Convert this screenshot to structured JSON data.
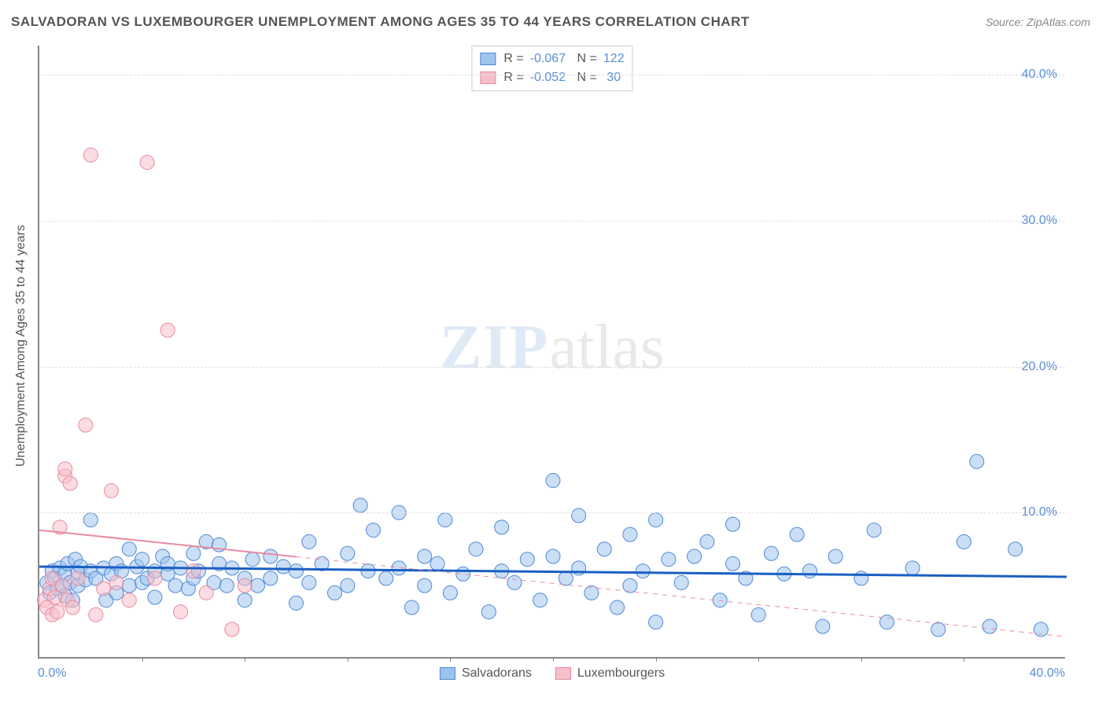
{
  "title": "SALVADORAN VS LUXEMBOURGER UNEMPLOYMENT AMONG AGES 35 TO 44 YEARS CORRELATION CHART",
  "source": "Source: ZipAtlas.com",
  "y_axis_label": "Unemployment Among Ages 35 to 44 years",
  "watermark_a": "ZIP",
  "watermark_b": "atlas",
  "chart": {
    "type": "scatter",
    "xlim": [
      0,
      40
    ],
    "ylim": [
      0,
      42
    ],
    "x_tick_labels": [
      "0.0%",
      "40.0%"
    ],
    "y_ticks": [
      10,
      20,
      30,
      40
    ],
    "y_tick_labels": [
      "10.0%",
      "20.0%",
      "30.0%",
      "40.0%"
    ],
    "x_minor_ticks": [
      4,
      8,
      12,
      16,
      20,
      24,
      28,
      32,
      36
    ],
    "background_color": "#ffffff",
    "grid_dash_color": "#e0e0e0",
    "axis_color": "#888888",
    "series": [
      {
        "name": "Salvadorans",
        "color_fill": "#9ec4ee",
        "color_stroke": "#4f88d6",
        "marker_radius": 9,
        "marker_opacity": 0.55,
        "R": "-0.067",
        "N": "122",
        "trend": {
          "y_at_x0": 6.3,
          "y_at_x40": 5.6,
          "color": "#1b5fc2",
          "width": 3,
          "dash": "none"
        },
        "points": [
          [
            0.3,
            5.2
          ],
          [
            0.4,
            4.5
          ],
          [
            0.5,
            6.0
          ],
          [
            0.6,
            5.5
          ],
          [
            0.7,
            4.8
          ],
          [
            0.8,
            6.2
          ],
          [
            0.9,
            5.0
          ],
          [
            1.0,
            5.8
          ],
          [
            1.0,
            4.3
          ],
          [
            1.1,
            6.5
          ],
          [
            1.2,
            5.2
          ],
          [
            1.3,
            4.0
          ],
          [
            1.4,
            6.8
          ],
          [
            1.5,
            5.0
          ],
          [
            1.5,
            5.9
          ],
          [
            1.6,
            6.3
          ],
          [
            1.8,
            5.4
          ],
          [
            2.0,
            6.0
          ],
          [
            2.0,
            9.5
          ],
          [
            2.2,
            5.5
          ],
          [
            2.5,
            6.2
          ],
          [
            2.6,
            4.0
          ],
          [
            2.8,
            5.8
          ],
          [
            3.0,
            6.5
          ],
          [
            3.0,
            4.5
          ],
          [
            3.2,
            6.0
          ],
          [
            3.5,
            5.0
          ],
          [
            3.5,
            7.5
          ],
          [
            3.8,
            6.3
          ],
          [
            4.0,
            5.2
          ],
          [
            4.0,
            6.8
          ],
          [
            4.2,
            5.5
          ],
          [
            4.5,
            6.0
          ],
          [
            4.5,
            4.2
          ],
          [
            4.8,
            7.0
          ],
          [
            5.0,
            5.8
          ],
          [
            5.0,
            6.5
          ],
          [
            5.3,
            5.0
          ],
          [
            5.5,
            6.2
          ],
          [
            5.8,
            4.8
          ],
          [
            6.0,
            7.2
          ],
          [
            6.0,
            5.5
          ],
          [
            6.2,
            6.0
          ],
          [
            6.5,
            8.0
          ],
          [
            6.8,
            5.2
          ],
          [
            7.0,
            6.5
          ],
          [
            7.0,
            7.8
          ],
          [
            7.3,
            5.0
          ],
          [
            7.5,
            6.2
          ],
          [
            8.0,
            5.5
          ],
          [
            8.0,
            4.0
          ],
          [
            8.3,
            6.8
          ],
          [
            8.5,
            5.0
          ],
          [
            9.0,
            7.0
          ],
          [
            9.0,
            5.5
          ],
          [
            9.5,
            6.3
          ],
          [
            10.0,
            3.8
          ],
          [
            10.0,
            6.0
          ],
          [
            10.5,
            5.2
          ],
          [
            10.5,
            8.0
          ],
          [
            11.0,
            6.5
          ],
          [
            11.5,
            4.5
          ],
          [
            12.0,
            7.2
          ],
          [
            12.0,
            5.0
          ],
          [
            12.5,
            10.5
          ],
          [
            12.8,
            6.0
          ],
          [
            13.0,
            8.8
          ],
          [
            13.5,
            5.5
          ],
          [
            14.0,
            10.0
          ],
          [
            14.0,
            6.2
          ],
          [
            14.5,
            3.5
          ],
          [
            15.0,
            7.0
          ],
          [
            15.0,
            5.0
          ],
          [
            15.5,
            6.5
          ],
          [
            15.8,
            9.5
          ],
          [
            16.0,
            4.5
          ],
          [
            16.5,
            5.8
          ],
          [
            17.0,
            7.5
          ],
          [
            17.5,
            3.2
          ],
          [
            18.0,
            6.0
          ],
          [
            18.0,
            9.0
          ],
          [
            18.5,
            5.2
          ],
          [
            19.0,
            6.8
          ],
          [
            19.5,
            4.0
          ],
          [
            20.0,
            7.0
          ],
          [
            20.0,
            12.2
          ],
          [
            20.5,
            5.5
          ],
          [
            21.0,
            6.2
          ],
          [
            21.0,
            9.8
          ],
          [
            21.5,
            4.5
          ],
          [
            22.0,
            7.5
          ],
          [
            22.5,
            3.5
          ],
          [
            23.0,
            8.5
          ],
          [
            23.0,
            5.0
          ],
          [
            23.5,
            6.0
          ],
          [
            24.0,
            9.5
          ],
          [
            24.0,
            2.5
          ],
          [
            24.5,
            6.8
          ],
          [
            25.0,
            5.2
          ],
          [
            25.5,
            7.0
          ],
          [
            26.0,
            8.0
          ],
          [
            26.5,
            4.0
          ],
          [
            27.0,
            6.5
          ],
          [
            27.0,
            9.2
          ],
          [
            27.5,
            5.5
          ],
          [
            28.0,
            3.0
          ],
          [
            28.5,
            7.2
          ],
          [
            29.0,
            5.8
          ],
          [
            29.5,
            8.5
          ],
          [
            30.0,
            6.0
          ],
          [
            30.5,
            2.2
          ],
          [
            31.0,
            7.0
          ],
          [
            32.0,
            5.5
          ],
          [
            32.5,
            8.8
          ],
          [
            33.0,
            2.5
          ],
          [
            34.0,
            6.2
          ],
          [
            35.0,
            2.0
          ],
          [
            36.0,
            8.0
          ],
          [
            36.5,
            13.5
          ],
          [
            37.0,
            2.2
          ],
          [
            38.0,
            7.5
          ],
          [
            39.0,
            2.0
          ]
        ]
      },
      {
        "name": "Luxembourgers",
        "color_fill": "#f5c0ca",
        "color_stroke": "#e88ba0",
        "marker_radius": 9,
        "marker_opacity": 0.55,
        "R": "-0.052",
        "N": "30",
        "trend": {
          "y_at_x0": 8.8,
          "y_at_x40": 1.5,
          "color": "#e88ba0",
          "width": 2,
          "dash": "solid-then-dash"
        },
        "points": [
          [
            0.2,
            4.0
          ],
          [
            0.3,
            3.5
          ],
          [
            0.4,
            4.8
          ],
          [
            0.5,
            3.0
          ],
          [
            0.5,
            5.5
          ],
          [
            0.6,
            4.2
          ],
          [
            0.7,
            3.2
          ],
          [
            0.8,
            9.0
          ],
          [
            0.9,
            5.0
          ],
          [
            1.0,
            12.5
          ],
          [
            1.0,
            13.0
          ],
          [
            1.1,
            4.0
          ],
          [
            1.2,
            12.0
          ],
          [
            1.3,
            3.5
          ],
          [
            1.5,
            5.5
          ],
          [
            1.8,
            16.0
          ],
          [
            2.0,
            34.5
          ],
          [
            2.2,
            3.0
          ],
          [
            2.5,
            4.8
          ],
          [
            2.8,
            11.5
          ],
          [
            3.0,
            5.2
          ],
          [
            3.5,
            4.0
          ],
          [
            4.2,
            34.0
          ],
          [
            4.5,
            5.5
          ],
          [
            5.0,
            22.5
          ],
          [
            5.5,
            3.2
          ],
          [
            6.0,
            6.0
          ],
          [
            6.5,
            4.5
          ],
          [
            7.5,
            2.0
          ],
          [
            8.0,
            5.0
          ]
        ]
      }
    ],
    "legend_bottom": [
      "Salvadorans",
      "Luxembourgers"
    ]
  }
}
